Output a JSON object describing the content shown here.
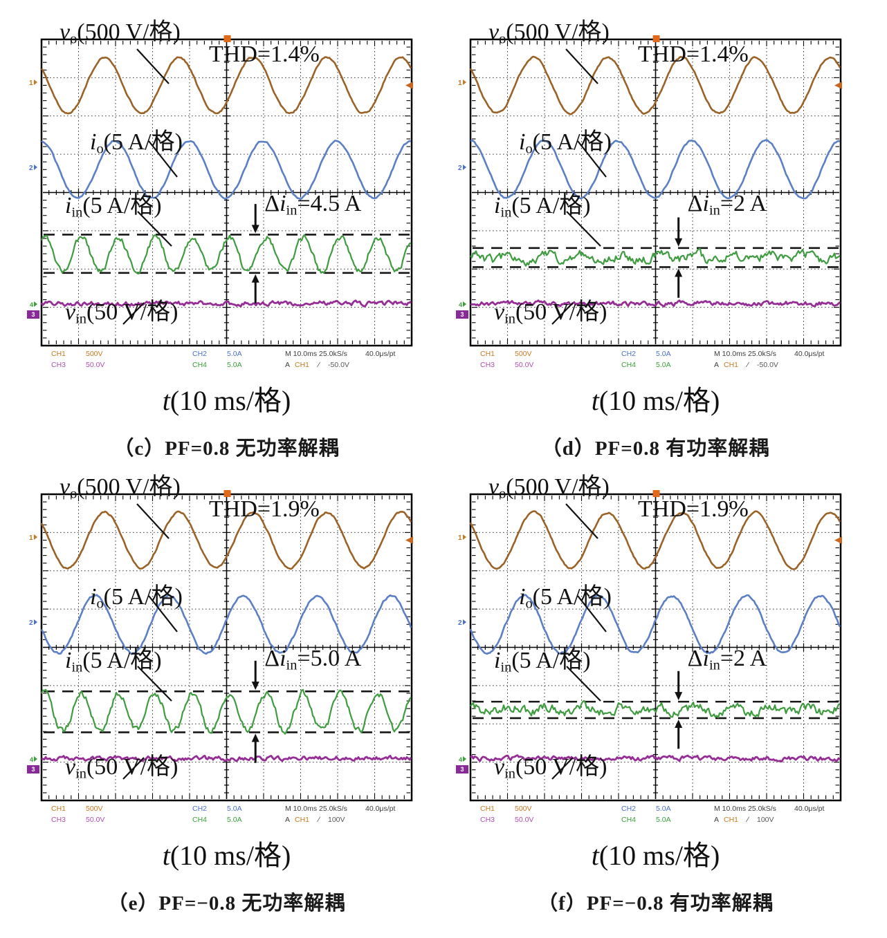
{
  "labels": {
    "vo": {
      "v": "v",
      "sub": "o",
      "rest": "(500 V/格)"
    },
    "io": {
      "v": "i",
      "sub": "o",
      "rest": "(5 A/格)"
    },
    "iin": {
      "v": "i",
      "sub": "in",
      "rest": "(5 A/格)"
    },
    "vin": {
      "v": "v",
      "sub": "in",
      "rest": "(50 V/格)"
    },
    "taxis": {
      "v": "t",
      "rest": "(10 ms/格)"
    }
  },
  "status": {
    "ch1": "CH1",
    "ch1_val": "500V",
    "ch2": "CH2",
    "ch2_val": "5.0A",
    "ch3": "CH3",
    "ch3_val": "50.0V",
    "ch4": "CH4",
    "ch4_val": "5.0A",
    "timebase": "M 10.0ms 25.0kS/s",
    "resolution": "40.0μs/pt",
    "trig_a": "A",
    "trig_ch": "CH1",
    "trig_slope": "∕"
  },
  "markers": {
    "ch1": "1",
    "ch2": "2",
    "ch4": "4",
    "ch3": "3"
  },
  "panels": [
    {
      "id": "c",
      "caption": "（c）PF=0.8 无功率解耦",
      "thd": "THD=1.4%",
      "delta": {
        "d": "Δ",
        "v": "i",
        "sub": "in",
        "rest": "=4.5 A"
      },
      "trigger": "-50.0V"
    },
    {
      "id": "d",
      "caption": "（d）PF=0.8 有功率解耦",
      "thd": "THD=1.4%",
      "delta": {
        "d": "Δ",
        "v": "i",
        "sub": "in",
        "rest": "=2 A"
      },
      "trigger": "-50.0V"
    },
    {
      "id": "e",
      "caption": "（e）PF=−0.8 无功率解耦",
      "thd": "THD=1.9%",
      "delta": {
        "d": "Δ",
        "v": "i",
        "sub": "in",
        "rest": "=5.0 A"
      },
      "trigger": "100V"
    },
    {
      "id": "f",
      "caption": "（f）PF=−0.8 有功率解耦",
      "thd": "THD=1.9%",
      "delta": {
        "d": "Δ",
        "v": "i",
        "sub": "in",
        "rest": "=2 A"
      },
      "trigger": "100V"
    }
  ],
  "chart_data": [
    {
      "panel": "c",
      "type": "line",
      "title": "THD=1.4%",
      "x": {
        "label": "t",
        "per_div": "10 ms",
        "divisions": 10
      },
      "y_divisions": 8,
      "grid": "dotted",
      "series": [
        {
          "name": "v_o",
          "per_div": "500 V",
          "color": "#9a6227",
          "center_div": 1.2,
          "amp_div": 0.73,
          "period_div": 2,
          "peak_x_div": 1.71,
          "noise_div": 0.02,
          "width": 2.6
        },
        {
          "name": "i_o",
          "per_div": "5 A",
          "color": "#5b7fc5",
          "center_div": 3.4,
          "amp_div": 0.75,
          "period_div": 2,
          "peak_x_div": 1.98,
          "noise_div": 0.02,
          "width": 2.6
        },
        {
          "name": "i_in",
          "per_div": "5 A",
          "color": "#3f9b3f",
          "center_div": 5.62,
          "amp_div": 0.45,
          "period_div": 1,
          "peak_x_div": 1.08,
          "noise_div": 0.07,
          "width": 2.2
        },
        {
          "name": "v_in",
          "per_div": "50 V",
          "color": "#962d96",
          "center_div": 6.9,
          "amp_div": 0,
          "period_div": 0,
          "peak_x_div": 0,
          "noise_div": 0.05,
          "width": 2.8
        }
      ],
      "annotations": {
        "delta_text": "Δi_in=4.5 A",
        "dash_divs": [
          5.1,
          6.1
        ],
        "arrow_x_div": 5.78
      }
    },
    {
      "panel": "d",
      "type": "line",
      "title": "THD=1.4%",
      "x": {
        "label": "t",
        "per_div": "10 ms",
        "divisions": 10
      },
      "y_divisions": 8,
      "grid": "dotted",
      "series": [
        {
          "name": "v_o",
          "per_div": "500 V",
          "color": "#9a6227",
          "center_div": 1.2,
          "amp_div": 0.73,
          "period_div": 2,
          "peak_x_div": 1.71,
          "noise_div": 0.02,
          "width": 2.6
        },
        {
          "name": "i_o",
          "per_div": "5 A",
          "color": "#5b7fc5",
          "center_div": 3.4,
          "amp_div": 0.75,
          "period_div": 2,
          "peak_x_div": 1.98,
          "noise_div": 0.02,
          "width": 2.6
        },
        {
          "name": "i_in",
          "per_div": "5 A",
          "color": "#3f9b3f",
          "center_div": 5.7,
          "amp_div": 0.08,
          "period_div": 1,
          "peak_x_div": 1.08,
          "noise_div": 0.1,
          "width": 2.2
        },
        {
          "name": "v_in",
          "per_div": "50 V",
          "color": "#962d96",
          "center_div": 6.9,
          "amp_div": 0,
          "period_div": 0,
          "peak_x_div": 0,
          "noise_div": 0.05,
          "width": 2.8
        }
      ],
      "annotations": {
        "delta_text": "Δi_in=2 A",
        "dash_divs": [
          5.45,
          5.95
        ],
        "arrow_x_div": 5.62
      }
    },
    {
      "panel": "e",
      "type": "line",
      "title": "THD=1.9%",
      "x": {
        "label": "t",
        "per_div": "10 ms",
        "divisions": 10
      },
      "y_divisions": 8,
      "grid": "dotted",
      "series": [
        {
          "name": "v_o",
          "per_div": "500 V",
          "color": "#9a6227",
          "center_div": 1.2,
          "amp_div": 0.73,
          "period_div": 2,
          "peak_x_div": 1.71,
          "noise_div": 0.02,
          "width": 2.6
        },
        {
          "name": "i_o",
          "per_div": "5 A",
          "color": "#5b7fc5",
          "center_div": 3.4,
          "amp_div": 0.75,
          "period_div": 2,
          "peak_x_div": 1.45,
          "noise_div": 0.025,
          "width": 2.6
        },
        {
          "name": "i_in",
          "per_div": "5 A",
          "color": "#3f9b3f",
          "center_div": 5.7,
          "amp_div": 0.5,
          "period_div": 1,
          "peak_x_div": 1.08,
          "noise_div": 0.08,
          "width": 2.2
        },
        {
          "name": "v_in",
          "per_div": "50 V",
          "color": "#962d96",
          "center_div": 6.9,
          "amp_div": 0,
          "period_div": 0,
          "peak_x_div": 0,
          "noise_div": 0.05,
          "width": 2.8
        }
      ],
      "annotations": {
        "delta_text": "Δi_in=5.0 A",
        "dash_divs": [
          5.15,
          6.22
        ],
        "arrow_x_div": 5.78
      }
    },
    {
      "panel": "f",
      "type": "line",
      "title": "THD=1.9%",
      "x": {
        "label": "t",
        "per_div": "10 ms",
        "divisions": 10
      },
      "y_divisions": 8,
      "grid": "dotted",
      "series": [
        {
          "name": "v_o",
          "per_div": "500 V",
          "color": "#9a6227",
          "center_div": 1.2,
          "amp_div": 0.73,
          "period_div": 2,
          "peak_x_div": 1.71,
          "noise_div": 0.02,
          "width": 2.6
        },
        {
          "name": "i_o",
          "per_div": "5 A",
          "color": "#5b7fc5",
          "center_div": 3.4,
          "amp_div": 0.75,
          "period_div": 2,
          "peak_x_div": 1.45,
          "noise_div": 0.025,
          "width": 2.6
        },
        {
          "name": "i_in",
          "per_div": "5 A",
          "color": "#3f9b3f",
          "center_div": 5.63,
          "amp_div": 0.08,
          "period_div": 1,
          "peak_x_div": 1.08,
          "noise_div": 0.1,
          "width": 2.2
        },
        {
          "name": "v_in",
          "per_div": "50 V",
          "color": "#962d96",
          "center_div": 6.9,
          "amp_div": 0,
          "period_div": 0,
          "peak_x_div": 0,
          "noise_div": 0.05,
          "width": 2.8
        }
      ],
      "annotations": {
        "delta_text": "Δi_in=2 A",
        "dash_divs": [
          5.42,
          5.85
        ],
        "arrow_x_div": 5.62
      }
    }
  ]
}
